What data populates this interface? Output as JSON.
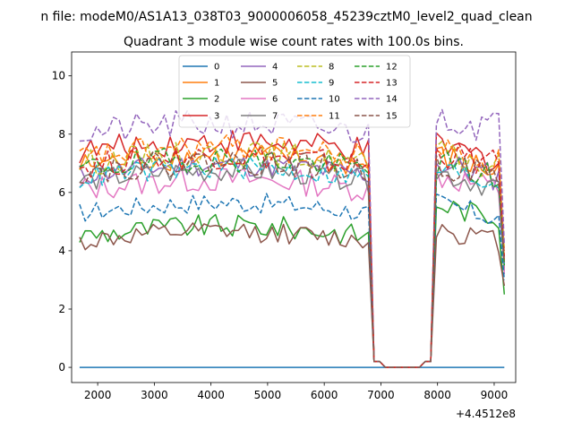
{
  "figure": {
    "suptitle": "n file: modeM0/AS1A13_038T03_9000006058_45239cztM0_level2_quad_clean",
    "title": "Quadrant 3 module wise count rates with 100.0s bins.",
    "x_offset_label": "+4.4512e8"
  },
  "chart_data": {
    "type": "line",
    "title": "Quadrant 3 module wise count rates with 100.0s bins.",
    "xlabel": "",
    "ylabel": "",
    "x_offset": "+4.4512e8",
    "xlim": [
      1540,
      9380
    ],
    "ylim": [
      -0.52,
      10.82
    ],
    "x_ticks": [
      2000,
      3000,
      4000,
      5000,
      6000,
      7000,
      8000,
      9000
    ],
    "x_tick_labels": [
      "2000",
      "3000",
      "4000",
      "5000",
      "6000",
      "7000",
      "8000",
      "9000"
    ],
    "y_ticks": [
      0,
      2,
      4,
      6,
      8,
      10
    ],
    "y_tick_labels": [
      "0",
      "2",
      "4",
      "6",
      "8",
      "10"
    ],
    "legend_position": "upper center",
    "legend_columns": 4,
    "x_start": 1680,
    "x_step": 100,
    "n_points": 76,
    "gap": {
      "drop_start": 6780,
      "zero_start": 6980,
      "zero_end": 7780,
      "rise_end": 7980,
      "end_value_range": [
        2.5,
        4.2
      ]
    },
    "series": [
      {
        "name": "0",
        "color": "#1f77b4",
        "dash": "solid",
        "mean_before": 0,
        "amp_before": 0,
        "mean_after": 0,
        "amp_after": 0,
        "end_value": 0,
        "constant": 0
      },
      {
        "name": "1",
        "color": "#ff7f0e",
        "dash": "solid",
        "mean_before": 6.9,
        "amp_before": 0.45,
        "mean_after": 7.2,
        "amp_after": 0.5,
        "end_value": 3.4
      },
      {
        "name": "2",
        "color": "#2ca02c",
        "dash": "solid",
        "mean_before": 4.5,
        "amp_before": 0.4,
        "mean_after": 5.6,
        "amp_after": 0.4,
        "end_value": 2.5
      },
      {
        "name": "3",
        "color": "#d62728",
        "dash": "solid",
        "mean_before": 7.4,
        "amp_before": 0.45,
        "mean_after": 7.6,
        "amp_after": 0.5,
        "end_value": 3.6
      },
      {
        "name": "4",
        "color": "#9467bd",
        "dash": "solid",
        "mean_before": 6.6,
        "amp_before": 0.4,
        "mean_after": 7.0,
        "amp_after": 0.5,
        "end_value": 3.3
      },
      {
        "name": "5",
        "color": "#8c564b",
        "dash": "solid",
        "mean_before": 4.3,
        "amp_before": 0.35,
        "mean_after": 4.8,
        "amp_after": 0.4,
        "end_value": 2.8
      },
      {
        "name": "6",
        "color": "#e377c2",
        "dash": "solid",
        "mean_before": 6.1,
        "amp_before": 0.45,
        "mean_after": 6.6,
        "amp_after": 0.5,
        "end_value": 3.2
      },
      {
        "name": "7",
        "color": "#7f7f7f",
        "dash": "solid",
        "mean_before": 6.4,
        "amp_before": 0.4,
        "mean_after": 6.7,
        "amp_after": 0.45,
        "end_value": 3.5
      },
      {
        "name": "8",
        "color": "#bcbd22",
        "dash": "dashed",
        "mean_before": 7.0,
        "amp_before": 0.45,
        "mean_after": 7.3,
        "amp_after": 0.5,
        "end_value": 4.0
      },
      {
        "name": "9",
        "color": "#17becf",
        "dash": "dashed",
        "mean_before": 6.5,
        "amp_before": 0.4,
        "mean_after": 6.8,
        "amp_after": 0.45,
        "end_value": 3.5
      },
      {
        "name": "10",
        "color": "#1f77b4",
        "dash": "dashed",
        "mean_before": 5.3,
        "amp_before": 0.35,
        "mean_after": 5.6,
        "amp_after": 0.4,
        "end_value": 3.0
      },
      {
        "name": "11",
        "color": "#ff7f0e",
        "dash": "dashed",
        "mean_before": 7.2,
        "amp_before": 0.45,
        "mean_after": 7.5,
        "amp_after": 0.5,
        "end_value": 3.7
      },
      {
        "name": "12",
        "color": "#2ca02c",
        "dash": "dashed",
        "mean_before": 6.8,
        "amp_before": 0.45,
        "mean_after": 7.0,
        "amp_after": 0.5,
        "end_value": 3.5
      },
      {
        "name": "13",
        "color": "#d62728",
        "dash": "dashed",
        "mean_before": 6.9,
        "amp_before": 0.45,
        "mean_after": 7.4,
        "amp_after": 0.5,
        "end_value": 3.8
      },
      {
        "name": "14",
        "color": "#9467bd",
        "dash": "dashed",
        "mean_before": 8.0,
        "amp_before": 0.5,
        "mean_after": 8.7,
        "amp_after": 0.6,
        "end_value": 4.2
      },
      {
        "name": "15",
        "color": "#8c564b",
        "dash": "dashed",
        "mean_before": 6.7,
        "amp_before": 0.45,
        "mean_after": 7.0,
        "amp_after": 0.5,
        "end_value": 3.6
      }
    ]
  }
}
